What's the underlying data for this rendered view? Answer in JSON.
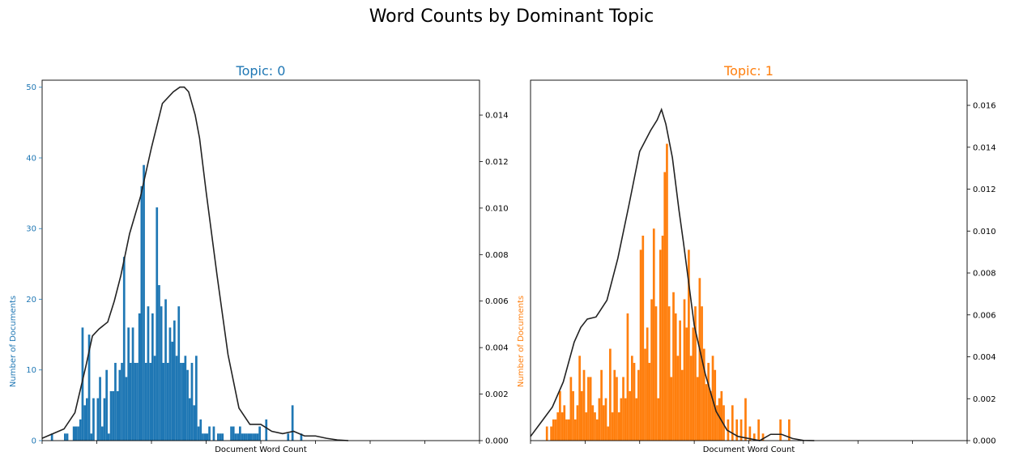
{
  "figure": {
    "suptitle": "Word Counts by Dominant Topic"
  },
  "chart_data": [
    {
      "type": "bar",
      "title": "Topic: 0",
      "color": "#1f77b4",
      "xlabel": "Document Word Count",
      "ylabel": "Number of Documents",
      "xlim": [
        0,
        1000
      ],
      "ylim": [
        0,
        51
      ],
      "yticks": [
        0,
        10,
        20,
        30,
        40,
        50
      ],
      "y2lim": [
        0,
        0.0155
      ],
      "y2ticks": [
        "0.000",
        "0.002",
        "0.004",
        "0.006",
        "0.008",
        "0.010",
        "0.012",
        "0.014"
      ],
      "bar_width": 5,
      "bars_x": [
        20,
        50,
        55,
        70,
        75,
        80,
        85,
        90,
        95,
        100,
        105,
        110,
        115,
        125,
        130,
        135,
        140,
        145,
        150,
        155,
        160,
        165,
        170,
        175,
        180,
        185,
        190,
        195,
        200,
        205,
        210,
        215,
        220,
        225,
        230,
        235,
        240,
        245,
        250,
        255,
        260,
        265,
        270,
        275,
        280,
        285,
        290,
        295,
        300,
        305,
        310,
        315,
        320,
        325,
        330,
        335,
        340,
        345,
        350,
        355,
        360,
        365,
        370,
        375,
        380,
        385,
        390,
        395,
        400,
        405,
        410,
        415,
        420,
        425,
        430,
        435,
        440,
        445,
        450,
        455,
        460,
        465,
        470,
        475,
        480,
        485,
        490,
        495,
        500,
        510,
        520,
        530,
        540,
        550,
        560,
        570,
        590
      ],
      "bars_y": [
        1,
        1,
        1,
        2,
        2,
        2,
        3,
        16,
        5,
        6,
        15,
        1,
        6,
        6,
        9,
        2,
        6,
        10,
        1,
        7,
        7,
        11,
        7,
        10,
        11,
        26,
        9,
        16,
        11,
        16,
        11,
        11,
        18,
        36,
        39,
        11,
        19,
        11,
        18,
        12,
        33,
        22,
        19,
        11,
        20,
        11,
        16,
        14,
        17,
        12,
        19,
        11,
        11,
        12,
        10,
        6,
        11,
        5,
        12,
        2,
        3,
        1,
        1,
        1,
        2,
        0,
        2,
        0,
        1,
        1,
        1,
        0,
        0,
        0,
        2,
        2,
        1,
        1,
        2,
        1,
        1,
        1,
        1,
        1,
        1,
        1,
        1,
        2,
        0,
        3,
        0,
        0,
        0,
        0,
        1,
        5,
        1
      ],
      "kde_x": [
        0,
        25,
        50,
        75,
        100,
        115,
        130,
        150,
        165,
        180,
        200,
        225,
        250,
        275,
        300,
        315,
        325,
        335,
        350,
        360,
        375,
        400,
        425,
        450,
        475,
        500,
        525,
        550,
        575,
        600,
        625,
        650,
        675,
        700
      ],
      "kde_y": [
        0.0001,
        0.0003,
        0.0005,
        0.0012,
        0.0032,
        0.0045,
        0.0048,
        0.0051,
        0.006,
        0.0071,
        0.0089,
        0.0105,
        0.0126,
        0.0145,
        0.015,
        0.0152,
        0.0152,
        0.015,
        0.014,
        0.013,
        0.0107,
        0.0071,
        0.0037,
        0.0014,
        0.0007,
        0.0007,
        0.0004,
        0.0003,
        0.0004,
        0.0002,
        0.0002,
        0.0001,
        3e-05,
        0.0
      ]
    },
    {
      "type": "bar",
      "title": "Topic: 1",
      "color": "#ff7f0e",
      "xlabel": "Document Word Count",
      "ylabel": "Number of Documents",
      "xlim": [
        0,
        1000
      ],
      "ylim": [
        0,
        51
      ],
      "yticks": [],
      "y2lim": [
        0,
        0.0172
      ],
      "y2ticks": [
        "0.000",
        "0.002",
        "0.004",
        "0.006",
        "0.008",
        "0.010",
        "0.012",
        "0.014",
        "0.016"
      ],
      "bar_width": 5,
      "bars_x": [
        35,
        45,
        50,
        55,
        60,
        65,
        70,
        75,
        80,
        85,
        90,
        95,
        100,
        105,
        110,
        115,
        120,
        125,
        130,
        135,
        140,
        145,
        150,
        155,
        160,
        165,
        170,
        175,
        180,
        185,
        190,
        195,
        200,
        205,
        210,
        215,
        220,
        225,
        230,
        235,
        240,
        245,
        250,
        255,
        260,
        265,
        270,
        275,
        280,
        285,
        290,
        295,
        300,
        305,
        310,
        315,
        320,
        325,
        330,
        335,
        340,
        345,
        350,
        355,
        360,
        365,
        370,
        375,
        380,
        385,
        390,
        395,
        400,
        405,
        410,
        415,
        420,
        425,
        430,
        435,
        440,
        450,
        460,
        470,
        480,
        490,
        500,
        510,
        520,
        530,
        540,
        550,
        560,
        570,
        580,
        590
      ],
      "bars_y": [
        2,
        2,
        3,
        3,
        4,
        7,
        4,
        5,
        3,
        3,
        9,
        7,
        3,
        5,
        12,
        7,
        10,
        4,
        9,
        9,
        5,
        4,
        3,
        6,
        10,
        5,
        6,
        2,
        13,
        4,
        10,
        9,
        4,
        6,
        9,
        6,
        18,
        7,
        12,
        11,
        6,
        10,
        27,
        29,
        13,
        16,
        11,
        20,
        30,
        19,
        6,
        27,
        29,
        38,
        42,
        19,
        9,
        21,
        18,
        12,
        17,
        10,
        20,
        16,
        27,
        12,
        16,
        19,
        9,
        23,
        19,
        13,
        8,
        11,
        7,
        12,
        10,
        5,
        6,
        7,
        5,
        3,
        5,
        3,
        3,
        6,
        2,
        1,
        3,
        1,
        0,
        0,
        0,
        3,
        0,
        3
      ],
      "kde_x": [
        0,
        25,
        50,
        75,
        100,
        115,
        130,
        150,
        175,
        200,
        225,
        250,
        275,
        290,
        300,
        310,
        325,
        340,
        350,
        375,
        400,
        425,
        450,
        475,
        500,
        525,
        550,
        575,
        600,
        625,
        650
      ],
      "kde_y": [
        0.0002,
        0.0009,
        0.0016,
        0.0028,
        0.0047,
        0.0054,
        0.0058,
        0.0059,
        0.0067,
        0.0087,
        0.0112,
        0.0138,
        0.0148,
        0.0153,
        0.0158,
        0.0151,
        0.0135,
        0.011,
        0.0095,
        0.0055,
        0.0032,
        0.0014,
        0.0005,
        0.0002,
        0.0001,
        0.0,
        0.0003,
        0.0003,
        0.0001,
        1e-05,
        0.0
      ]
    }
  ]
}
